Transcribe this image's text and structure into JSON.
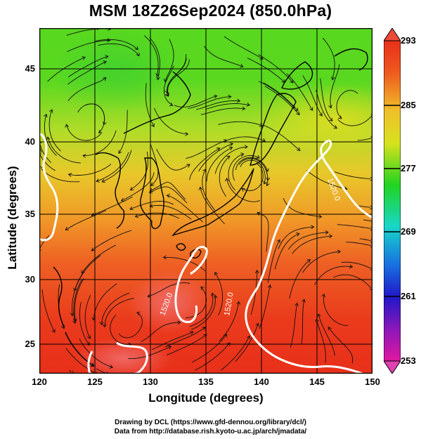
{
  "title": "MSM 18Z26Sep2024 (850.0hPa)",
  "x_axis": {
    "label": "Longitude (degrees)",
    "range": [
      120,
      150
    ],
    "ticks": [
      "120",
      "125",
      "130",
      "135",
      "140",
      "145",
      "150"
    ]
  },
  "y_axis": {
    "label": "Latitude  (degrees)",
    "range": [
      22.4,
      48
    ],
    "ticks": [
      "25",
      "30",
      "35",
      "40",
      "45"
    ]
  },
  "colorbar": {
    "min": 253,
    "max": 293,
    "tick_labels": [
      "293",
      "285",
      "277",
      "269",
      "261",
      "253"
    ],
    "colors": [
      "#c8189c",
      "#2a1cd0",
      "#12d7e8",
      "#1ed21e",
      "#f2e61a",
      "#e63c1a"
    ]
  },
  "contours": {
    "color": "#ffffff",
    "labels": [
      "1520.0",
      "1520.0",
      "1520.0"
    ]
  },
  "footer": {
    "line1": "Drawing by DCL (https://www.gfd-dennou.org/library/dcl/)",
    "line2": "Data from http://database.rish.kyoto-u.ac.jp/arch/jmadata/"
  }
}
